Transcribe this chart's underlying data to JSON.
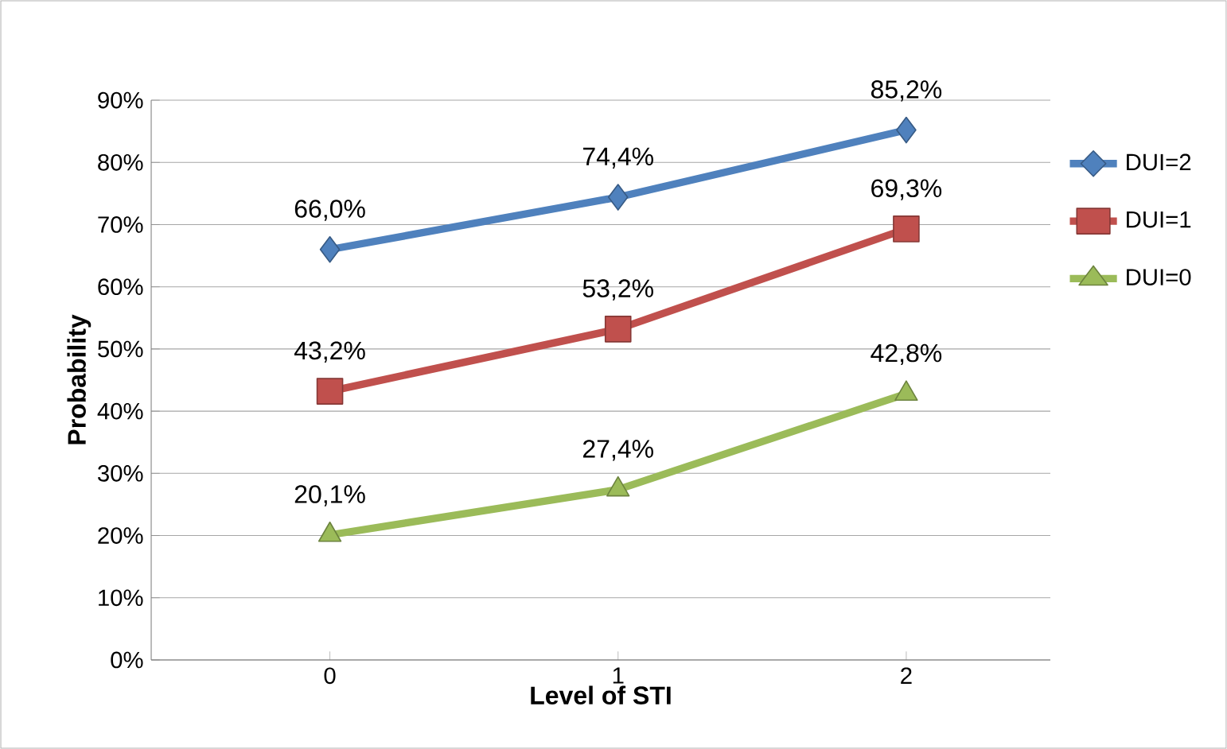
{
  "chart_data": {
    "type": "line",
    "xlabel": "Level of STI",
    "ylabel": "Probability",
    "categories": [
      "0",
      "1",
      "2"
    ],
    "series": [
      {
        "name": "DUI=2",
        "color": "#4f81bd",
        "marker": "diamond",
        "values": [
          66.0,
          74.4,
          85.2
        ],
        "value_labels": [
          "66,0%",
          "74,4%",
          "85,2%"
        ]
      },
      {
        "name": "DUI=1",
        "color": "#c0504d",
        "marker": "square",
        "values": [
          43.2,
          53.2,
          69.3
        ],
        "value_labels": [
          "43,2%",
          "53,2%",
          "69,3%"
        ]
      },
      {
        "name": "DUI=0",
        "color": "#9bbb59",
        "marker": "triangle",
        "values": [
          20.1,
          27.4,
          42.8
        ],
        "value_labels": [
          "20,1%",
          "27,4%",
          "42,8%"
        ]
      }
    ],
    "ylim": [
      0,
      90
    ],
    "yticks": [
      {
        "value": 0,
        "label": "0%"
      },
      {
        "value": 10,
        "label": "10%"
      },
      {
        "value": 20,
        "label": "20%"
      },
      {
        "value": 30,
        "label": "30%"
      },
      {
        "value": 40,
        "label": "40%"
      },
      {
        "value": 50,
        "label": "50%"
      },
      {
        "value": 60,
        "label": "60%"
      },
      {
        "value": 70,
        "label": "70%"
      },
      {
        "value": 80,
        "label": "80%"
      },
      {
        "value": 90,
        "label": "90%"
      }
    ],
    "grid": "y",
    "legend": "right",
    "line_style": "solid"
  }
}
